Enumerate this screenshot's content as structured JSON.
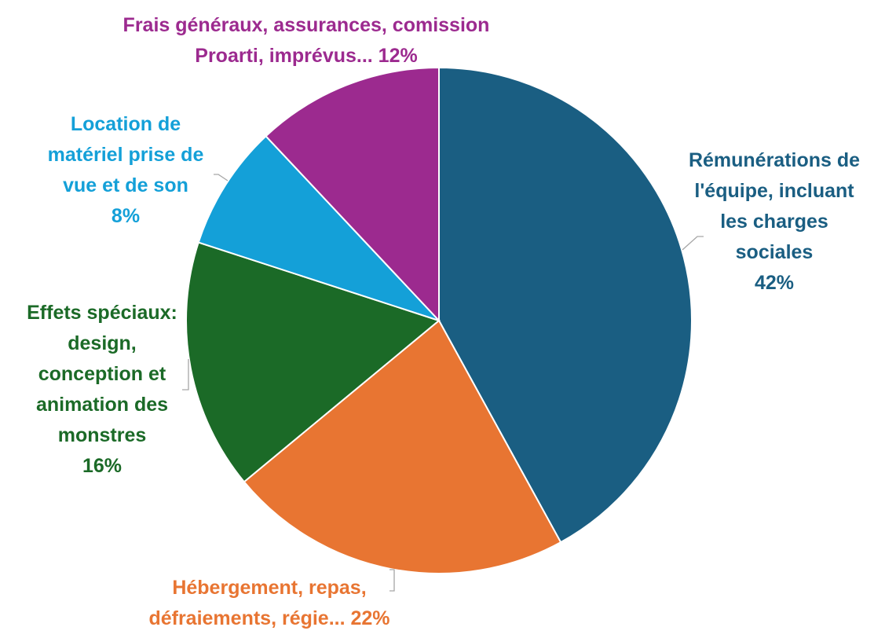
{
  "chart_data": {
    "type": "pie",
    "title": "",
    "slices": [
      {
        "label_lines": [
          "Rémunérations de",
          "l'équipe, incluant",
          "les charges",
          "sociales"
        ],
        "pct_text": "42%",
        "value": 42,
        "color": "#1a5e82"
      },
      {
        "label_lines": [
          "Hébergement, repas,"
        ],
        "label_last": "défraiements, régie...",
        "pct_text": "22%",
        "value": 22,
        "color": "#e87532"
      },
      {
        "label_lines": [
          "Effets spéciaux:",
          "design,",
          "conception et",
          "animation des",
          "monstres"
        ],
        "pct_text": "16%",
        "value": 16,
        "color": "#1b6a27"
      },
      {
        "label_lines": [
          "Location de",
          "matériel prise de",
          "vue et de son"
        ],
        "pct_text": "8%",
        "value": 8,
        "color": "#14a0d8"
      },
      {
        "label_lines": [
          "Frais généraux, assurances, comission"
        ],
        "label_last": "Proarti, imprévus...",
        "pct_text": "12%",
        "value": 12,
        "color": "#9c2a8f"
      }
    ]
  }
}
